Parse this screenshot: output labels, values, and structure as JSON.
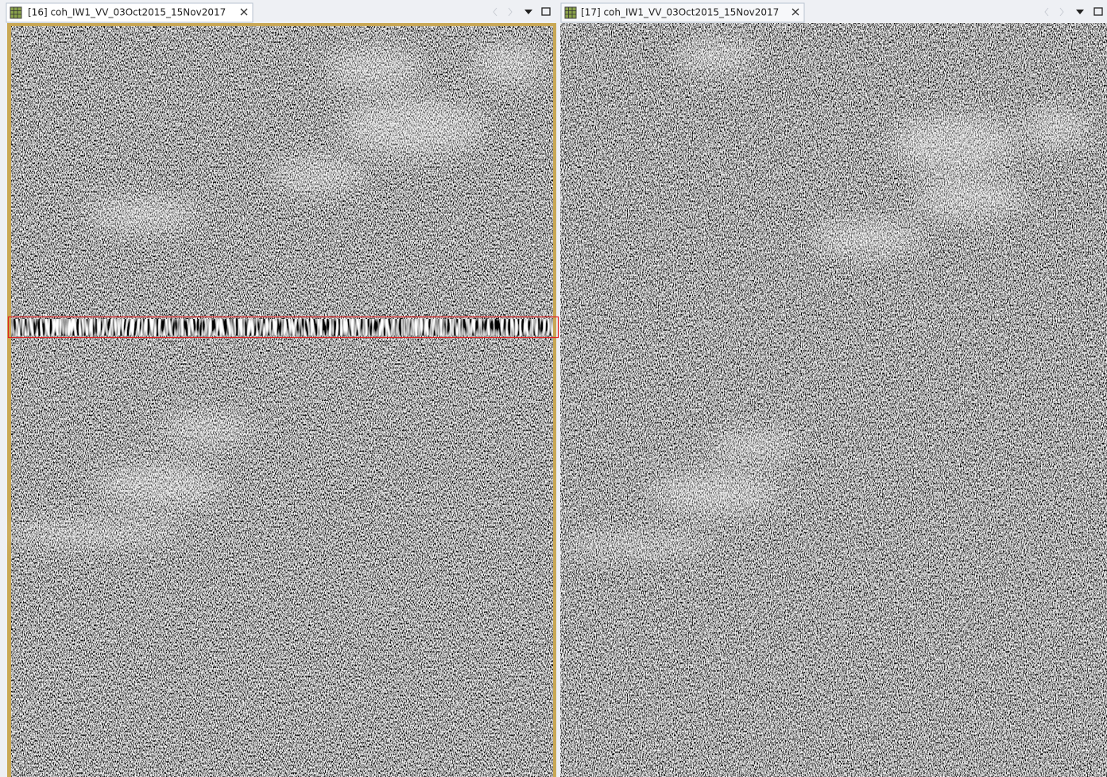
{
  "panels": [
    {
      "tab": "[16] coh_IW1_VV_03Oct2015_15Nov2017"
    },
    {
      "tab": "[17] coh_IW1_VV_03Oct2015_15Nov2017"
    }
  ]
}
